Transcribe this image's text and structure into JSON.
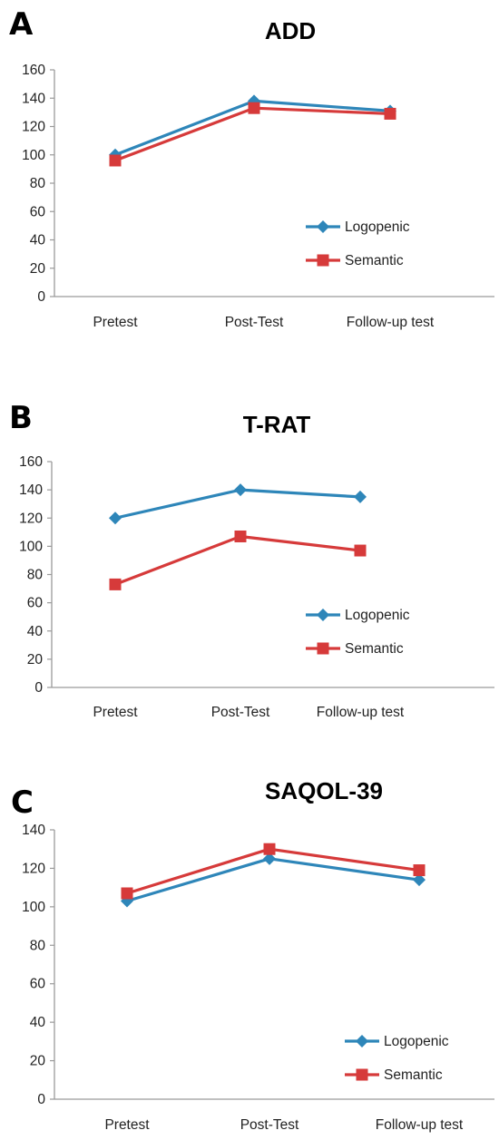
{
  "colors": {
    "logopenic": "#2E86B9",
    "semantic": "#D63A3A",
    "axis": "#9a9a9a"
  },
  "chart_data": [
    {
      "panel": "A",
      "type": "line",
      "title": "ADD",
      "xlabel": "",
      "ylabel": "",
      "categories": [
        "Pretest",
        "Post-Test",
        "Follow-up test"
      ],
      "ylim": [
        0,
        160
      ],
      "yticks": [
        0,
        20,
        40,
        60,
        80,
        100,
        120,
        140,
        160
      ],
      "legend": "right-middle",
      "grid": false,
      "series": [
        {
          "name": "Logopenic",
          "marker": "diamond",
          "values": [
            100,
            138,
            131
          ]
        },
        {
          "name": "Semantic",
          "marker": "square",
          "values": [
            96,
            133,
            129
          ]
        }
      ]
    },
    {
      "panel": "B",
      "type": "line",
      "title": "T-RAT",
      "xlabel": "",
      "ylabel": "",
      "categories": [
        "Pretest",
        "Post-Test",
        "Follow-up test"
      ],
      "ylim": [
        0,
        160
      ],
      "yticks": [
        0,
        20,
        40,
        60,
        80,
        100,
        120,
        140,
        160
      ],
      "legend": "right-middle",
      "grid": false,
      "series": [
        {
          "name": "Logopenic",
          "marker": "diamond",
          "values": [
            120,
            140,
            135
          ]
        },
        {
          "name": "Semantic",
          "marker": "square",
          "values": [
            73,
            107,
            97
          ]
        }
      ]
    },
    {
      "panel": "C",
      "type": "line",
      "title": "SAQOL-39",
      "xlabel": "",
      "ylabel": "",
      "categories": [
        "Pretest",
        "Post-Test",
        "Follow-up test"
      ],
      "ylim": [
        0,
        140
      ],
      "yticks": [
        0,
        20,
        40,
        60,
        80,
        100,
        120,
        140
      ],
      "legend": "bottom-right",
      "grid": false,
      "series": [
        {
          "name": "Logopenic",
          "marker": "diamond",
          "values": [
            103,
            125,
            114
          ]
        },
        {
          "name": "Semantic",
          "marker": "square",
          "values": [
            107,
            130,
            119
          ]
        }
      ]
    }
  ]
}
